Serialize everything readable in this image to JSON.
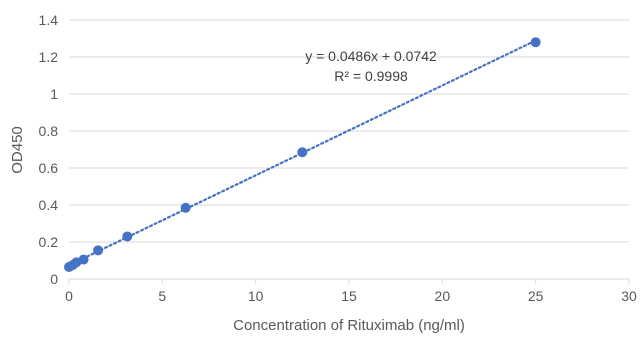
{
  "chart_data": {
    "type": "scatter",
    "title": "",
    "xlabel": "Concentration of Rituximab (ng/ml)",
    "ylabel": "OD450",
    "xlim": [
      0,
      30
    ],
    "ylim": [
      0,
      1.4
    ],
    "xticks": [
      0,
      5,
      10,
      15,
      20,
      25,
      30
    ],
    "yticks": [
      0,
      0.2,
      0.4,
      0.6,
      0.8,
      1,
      1.2,
      1.4
    ],
    "xtick_labels": [
      "0",
      "5",
      "10",
      "15",
      "20",
      "25",
      "30"
    ],
    "ytick_labels": [
      "0",
      "0.2",
      "0.4",
      "0.6",
      "0.8",
      "1",
      "1.2",
      "1.4"
    ],
    "grid": "horizontal",
    "legend": "none",
    "series": [
      {
        "x": [
          0,
          0.195,
          0.39,
          0.78,
          1.56,
          3.125,
          6.25,
          12.5,
          25
        ],
        "y": [
          0.065,
          0.075,
          0.09,
          0.105,
          0.155,
          0.23,
          0.385,
          0.685,
          1.28
        ],
        "color": "#4472C4"
      }
    ],
    "trendline": {
      "slope": 0.0486,
      "intercept": 0.0742,
      "x_range": [
        0,
        25
      ],
      "style": "dotted",
      "color": "#4472C4"
    },
    "annotations": {
      "equation": "y = 0.0486x + 0.0742",
      "r_squared": "R² = 0.9998"
    },
    "colors": {
      "axis_text": "#595959",
      "gridline": "#D9D9D9",
      "marker": "#4472C4"
    }
  }
}
